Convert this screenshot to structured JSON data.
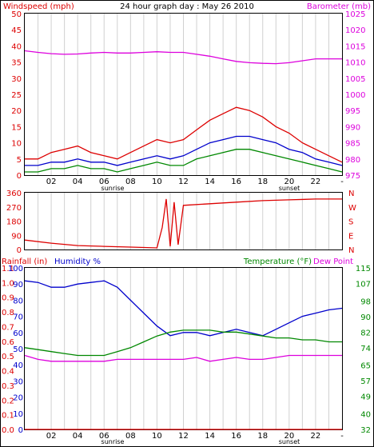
{
  "chart_data": [
    {
      "type": "line",
      "title": "24 hour graph day : May 26 2010",
      "left_label": "Windspeed (mph)",
      "right_label": "Barometer (mb)",
      "y_left_lim": [
        0,
        50
      ],
      "y_left_ticks": [
        "0",
        "5",
        "10",
        "15",
        "20",
        "25",
        "30",
        "35",
        "40",
        "45",
        "50"
      ],
      "y_right_lim": [
        975,
        1025
      ],
      "y_right_ticks": [
        "975",
        "980",
        "985",
        "990",
        "995",
        "1000",
        "1005",
        "1010",
        "1015",
        "1020",
        "1025"
      ],
      "x_lim": [
        0,
        24
      ],
      "x_ticks": [
        "02",
        "04",
        "06",
        "08",
        "10",
        "12",
        "14",
        "16",
        "18",
        "20",
        "22",
        "-"
      ],
      "sunrise_label": "sunrise",
      "sunset_label": "sunset",
      "series": [
        {
          "axis": "right",
          "color": "#dd00dd",
          "x": [
            0,
            1,
            2,
            3,
            4,
            5,
            6,
            7,
            8,
            9,
            10,
            11,
            12,
            13,
            14,
            15,
            16,
            17,
            18,
            19,
            20,
            21,
            22,
            23,
            24
          ],
          "values": [
            1013.5,
            1013,
            1012.6,
            1012.4,
            1012.5,
            1012.8,
            1013,
            1012.8,
            1012.8,
            1013,
            1013.2,
            1013,
            1013,
            1012.4,
            1011.8,
            1011,
            1010.2,
            1009.8,
            1009.6,
            1009.5,
            1009.8,
            1010.4,
            1011,
            1011,
            1011
          ]
        },
        {
          "axis": "left",
          "color": "#008800",
          "x": [
            0,
            1,
            2,
            3,
            4,
            5,
            6,
            7,
            8,
            9,
            10,
            11,
            12,
            13,
            14,
            15,
            16,
            17,
            18,
            19,
            20,
            21,
            22,
            23,
            24
          ],
          "values": [
            1,
            1,
            2,
            2,
            3,
            2,
            2,
            1,
            2,
            3,
            4,
            3,
            3,
            5,
            6,
            7,
            8,
            8,
            7,
            6,
            5,
            4,
            3,
            2,
            1
          ]
        },
        {
          "axis": "left",
          "color": "#0000cc",
          "x": [
            0,
            1,
            2,
            3,
            4,
            5,
            6,
            7,
            8,
            9,
            10,
            11,
            12,
            13,
            14,
            15,
            16,
            17,
            18,
            19,
            20,
            21,
            22,
            23,
            24
          ],
          "values": [
            3,
            3,
            4,
            4,
            5,
            4,
            4,
            3,
            4,
            5,
            6,
            5,
            6,
            8,
            10,
            11,
            12,
            12,
            11,
            10,
            8,
            7,
            5,
            4,
            3
          ]
        },
        {
          "axis": "left",
          "color": "#dd0000",
          "x": [
            0,
            1,
            2,
            3,
            4,
            5,
            6,
            7,
            8,
            9,
            10,
            11,
            12,
            13,
            14,
            15,
            16,
            17,
            18,
            19,
            20,
            21,
            22,
            23,
            24
          ],
          "values": [
            5,
            5,
            7,
            8,
            9,
            7,
            6,
            5,
            7,
            9,
            11,
            10,
            11,
            14,
            17,
            19,
            21,
            20,
            18,
            15,
            13,
            10,
            8,
            6,
            4
          ]
        }
      ]
    },
    {
      "type": "line",
      "y_lim": [
        0,
        360
      ],
      "y_ticks": [
        "0",
        "90",
        "180",
        "270",
        "360"
      ],
      "right_labels": [
        "N",
        "W",
        "S",
        "E",
        "N"
      ],
      "x_lim": [
        0,
        24
      ],
      "series": [
        {
          "color": "#dd0000",
          "x": [
            0,
            2,
            4,
            6,
            8,
            10,
            10.4,
            10.7,
            11,
            11.3,
            11.6,
            12,
            14,
            16,
            18,
            20,
            22,
            24
          ],
          "values": [
            60,
            40,
            25,
            20,
            15,
            10,
            140,
            320,
            20,
            300,
            30,
            280,
            290,
            300,
            310,
            315,
            320,
            320
          ]
        }
      ]
    },
    {
      "type": "line",
      "left_label": "Rainfall (in)",
      "humidity_label": "Humidity %",
      "right_label": "Temperature (°F)",
      "dewpoint_label": "Dew Point",
      "y_left_lim": [
        0,
        100
      ],
      "y_left_ticks": [
        "0",
        "10",
        "20",
        "30",
        "40",
        "50",
        "60",
        "70",
        "80",
        "90",
        "100"
      ],
      "rain_ticks": [
        "0.0",
        "0.1",
        "0.2",
        "0.3",
        "0.4",
        "0.5",
        "0.6",
        "0.7",
        "0.8",
        "0.9",
        "1.0",
        "1.1"
      ],
      "y_right_lim": [
        32,
        115
      ],
      "y_right_ticks": [
        "32",
        "40",
        "49",
        "57",
        "65",
        "74",
        "82",
        "90",
        "98",
        "107",
        "115"
      ],
      "x_lim": [
        0,
        24
      ],
      "x_ticks": [
        "02",
        "04",
        "06",
        "08",
        "10",
        "12",
        "14",
        "16",
        "18",
        "20",
        "22",
        "-"
      ],
      "sunrise_label": "sunrise",
      "sunset_label": "sunset",
      "series": [
        {
          "name": "Humidity %",
          "color": "#0000cc",
          "axis": "left",
          "x": [
            0,
            1,
            2,
            3,
            4,
            5,
            6,
            7,
            8,
            9,
            10,
            11,
            12,
            13,
            14,
            15,
            16,
            17,
            18,
            19,
            20,
            21,
            22,
            23,
            24
          ],
          "values": [
            92,
            91,
            88,
            88,
            90,
            91,
            92,
            88,
            80,
            72,
            64,
            58,
            60,
            60,
            58,
            60,
            62,
            60,
            58,
            62,
            66,
            70,
            72,
            74,
            75
          ]
        },
        {
          "name": "Temperature",
          "color": "#008800",
          "axis": "right",
          "x": [
            0,
            1,
            2,
            3,
            4,
            5,
            6,
            7,
            8,
            9,
            10,
            11,
            12,
            13,
            14,
            15,
            16,
            17,
            18,
            19,
            20,
            21,
            22,
            23,
            24
          ],
          "values": [
            74,
            73,
            72,
            71,
            70,
            70,
            70,
            72,
            74,
            77,
            80,
            82,
            83,
            83,
            83,
            82,
            82,
            81,
            80,
            79,
            79,
            78,
            78,
            77,
            77
          ]
        },
        {
          "name": "Dew Point",
          "color": "#dd00dd",
          "axis": "right",
          "x": [
            0,
            1,
            2,
            3,
            4,
            5,
            6,
            7,
            8,
            9,
            10,
            11,
            12,
            13,
            14,
            15,
            16,
            17,
            18,
            19,
            20,
            21,
            22,
            23,
            24
          ],
          "values": [
            70,
            68,
            67,
            67,
            67,
            67,
            67,
            68,
            68,
            68,
            68,
            68,
            68,
            69,
            67,
            68,
            69,
            68,
            68,
            69,
            70,
            70,
            70,
            70,
            70
          ]
        },
        {
          "name": "Rainfall (in)",
          "color": "#dd0000",
          "axis": "rain",
          "x": [
            0,
            24
          ],
          "values": [
            0,
            0
          ]
        }
      ]
    }
  ]
}
